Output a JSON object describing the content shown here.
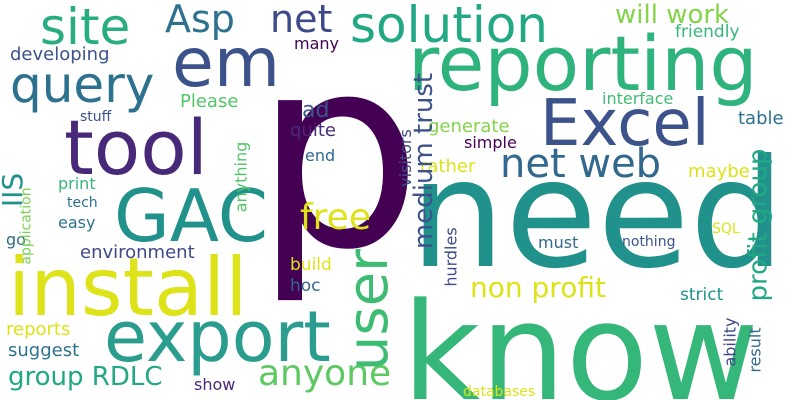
{
  "words": [
    {
      "id": "p",
      "text": "p",
      "color": "#440154"
    },
    {
      "id": "need",
      "text": "need",
      "color": "#21918c"
    },
    {
      "id": "know",
      "text": "know",
      "color": "#35b779"
    },
    {
      "id": "reporting",
      "text": "reporting",
      "color": "#2eb37c"
    },
    {
      "id": "solution",
      "text": "solution",
      "color": "#22a884"
    },
    {
      "id": "install",
      "text": "install",
      "color": "#dde318"
    },
    {
      "id": "export",
      "text": "export",
      "color": "#2a9d8f"
    },
    {
      "id": "tool",
      "text": "tool",
      "color": "#482878"
    },
    {
      "id": "excel",
      "text": "Excel",
      "color": "#3b528b"
    },
    {
      "id": "gac",
      "text": "GAC",
      "color": "#21918c"
    },
    {
      "id": "em",
      "text": "em",
      "color": "#3b528b"
    },
    {
      "id": "query",
      "text": "query",
      "color": "#2c728e"
    },
    {
      "id": "site",
      "text": "site",
      "color": "#27ad81"
    },
    {
      "id": "asp",
      "text": "Asp",
      "color": "#2c728e"
    },
    {
      "id": "net_top",
      "text": "net",
      "color": "#3e4989"
    },
    {
      "id": "netweb",
      "text": "net web",
      "color": "#31688e"
    },
    {
      "id": "user",
      "text": "user",
      "color": "#3fbc73"
    },
    {
      "id": "anyone",
      "text": "anyone",
      "color": "#5ec962"
    },
    {
      "id": "free",
      "text": "free",
      "color": "#dde318"
    },
    {
      "id": "willwork",
      "text": "will work",
      "color": "#84d44b"
    },
    {
      "id": "friendly",
      "text": "friendly",
      "color": "#35b779"
    },
    {
      "id": "mediumtrust",
      "text": "medium trust",
      "color": "#3b528b"
    },
    {
      "id": "nonprofit",
      "text": "non profit",
      "color": "#dde318"
    },
    {
      "id": "profitgroup",
      "text": "profit group",
      "color": "#22a884"
    },
    {
      "id": "grouprdlc",
      "text": "group RDLC",
      "color": "#22a884"
    },
    {
      "id": "iis",
      "text": "IIS",
      "color": "#21918c"
    },
    {
      "id": "developing",
      "text": "developing",
      "color": "#3b528b"
    },
    {
      "id": "please",
      "text": "Please",
      "color": "#52c569"
    },
    {
      "id": "interface",
      "text": "interface",
      "color": "#3fbc73"
    },
    {
      "id": "table",
      "text": "table",
      "color": "#2c728e"
    },
    {
      "id": "generate",
      "text": "generate",
      "color": "#84d44b"
    },
    {
      "id": "simple",
      "text": "simple",
      "color": "#440154"
    },
    {
      "id": "rather",
      "text": "rather",
      "color": "#dde318"
    },
    {
      "id": "maybe",
      "text": "maybe",
      "color": "#dde318"
    },
    {
      "id": "many",
      "text": "many",
      "color": "#440154"
    },
    {
      "id": "ad",
      "text": "ad",
      "color": "#3b528b"
    },
    {
      "id": "quite",
      "text": "quite",
      "color": "#482878"
    },
    {
      "id": "end",
      "text": "end",
      "color": "#31688e"
    },
    {
      "id": "stuff",
      "text": "stuff",
      "color": "#3b528b"
    },
    {
      "id": "print",
      "text": "print",
      "color": "#35b779"
    },
    {
      "id": "tech",
      "text": "tech",
      "color": "#2c728e"
    },
    {
      "id": "easy",
      "text": "easy",
      "color": "#2c728e"
    },
    {
      "id": "go",
      "text": "go",
      "color": "#31688e"
    },
    {
      "id": "environment",
      "text": "environment",
      "color": "#3e4989"
    },
    {
      "id": "application",
      "text": "application",
      "color": "#7ad151"
    },
    {
      "id": "build",
      "text": "build",
      "color": "#dde318"
    },
    {
      "id": "hoc",
      "text": "hoc",
      "color": "#31688e"
    },
    {
      "id": "reports",
      "text": "reports",
      "color": "#dde318"
    },
    {
      "id": "suggest",
      "text": "suggest",
      "color": "#2c728e"
    },
    {
      "id": "show",
      "text": "show",
      "color": "#482878"
    },
    {
      "id": "anything",
      "text": "anything",
      "color": "#52c569"
    },
    {
      "id": "visitors",
      "text": "visitors",
      "color": "#3e4989"
    },
    {
      "id": "hurdles",
      "text": "hurdles",
      "color": "#3e4989"
    },
    {
      "id": "must",
      "text": "must",
      "color": "#31688e"
    },
    {
      "id": "nothing",
      "text": "nothing",
      "color": "#3b528b"
    },
    {
      "id": "sql",
      "text": "SQL",
      "color": "#dde318"
    },
    {
      "id": "strict",
      "text": "strict",
      "color": "#21918c"
    },
    {
      "id": "ability",
      "text": "ability",
      "color": "#3e4989"
    },
    {
      "id": "result",
      "text": "result",
      "color": "#31688e"
    },
    {
      "id": "databases",
      "text": "databases",
      "color": "#dde318"
    }
  ]
}
